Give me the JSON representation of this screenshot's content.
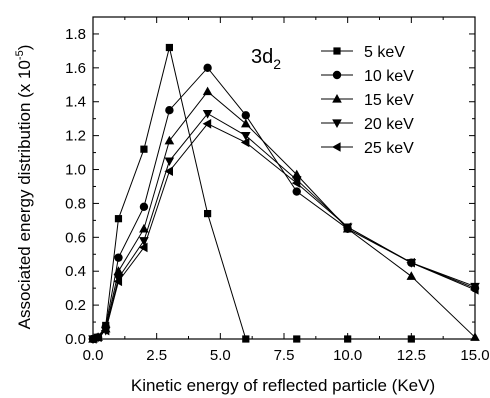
{
  "chart_data": {
    "type": "line",
    "panel_label": "3d",
    "panel_label_sub": "2",
    "xlabel": "Kinetic energy of reflected particle (KeV)",
    "ylabel": "Associated energy distribution",
    "ylabel_unit": "(x 10",
    "ylabel_unit_exp": "-5",
    "ylabel_unit_close": ")",
    "xlim": [
      0,
      15
    ],
    "ylim": [
      0,
      1.9
    ],
    "xticks": [
      "0.0",
      "2.5",
      "5.0",
      "7.5",
      "10.0",
      "12.5",
      "15.0"
    ],
    "yticks": [
      "0.0",
      "0.2",
      "0.4",
      "0.6",
      "0.8",
      "1.0",
      "1.2",
      "1.4",
      "1.6",
      "1.8"
    ],
    "grid": false,
    "legend_position": "top-right",
    "series": [
      {
        "name": "5 keV",
        "marker": "square",
        "x": [
          0.0,
          0.2,
          0.5,
          1.0,
          2.0,
          3.0,
          4.5,
          6.0,
          8.0,
          10.0,
          12.5
        ],
        "y": [
          0.0,
          0.01,
          0.08,
          0.71,
          1.12,
          1.72,
          0.74,
          0.0,
          0.0,
          0.0,
          0.0
        ]
      },
      {
        "name": "10 keV",
        "marker": "circle",
        "x": [
          0.0,
          0.2,
          0.5,
          1.0,
          2.0,
          3.0,
          4.5,
          6.0,
          8.0,
          10.0,
          12.5,
          15.0
        ],
        "y": [
          0.0,
          0.01,
          0.07,
          0.48,
          0.78,
          1.35,
          1.6,
          1.32,
          0.87,
          0.65,
          0.45,
          0.3
        ]
      },
      {
        "name": "15 keV",
        "marker": "triangle-up",
        "x": [
          0.0,
          0.2,
          0.5,
          1.0,
          2.0,
          3.0,
          4.5,
          6.0,
          8.0,
          10.0,
          12.5,
          15.0
        ],
        "y": [
          0.0,
          0.01,
          0.06,
          0.4,
          0.65,
          1.17,
          1.46,
          1.27,
          0.97,
          0.65,
          0.37,
          0.01
        ]
      },
      {
        "name": "20 keV",
        "marker": "triangle-down",
        "x": [
          0.0,
          0.2,
          0.5,
          1.0,
          2.0,
          3.0,
          4.5,
          6.0,
          8.0,
          10.0,
          12.5,
          15.0
        ],
        "y": [
          0.0,
          0.01,
          0.05,
          0.36,
          0.58,
          1.05,
          1.33,
          1.2,
          0.94,
          0.66,
          0.45,
          0.31
        ]
      },
      {
        "name": "25 keV",
        "marker": "triangle-left",
        "x": [
          0.0,
          0.2,
          0.5,
          1.0,
          2.0,
          3.0,
          4.5,
          6.0,
          8.0,
          10.0,
          12.5,
          15.0
        ],
        "y": [
          0.0,
          0.01,
          0.05,
          0.34,
          0.54,
          0.99,
          1.27,
          1.16,
          0.92,
          0.66,
          0.45,
          0.29
        ]
      }
    ]
  }
}
